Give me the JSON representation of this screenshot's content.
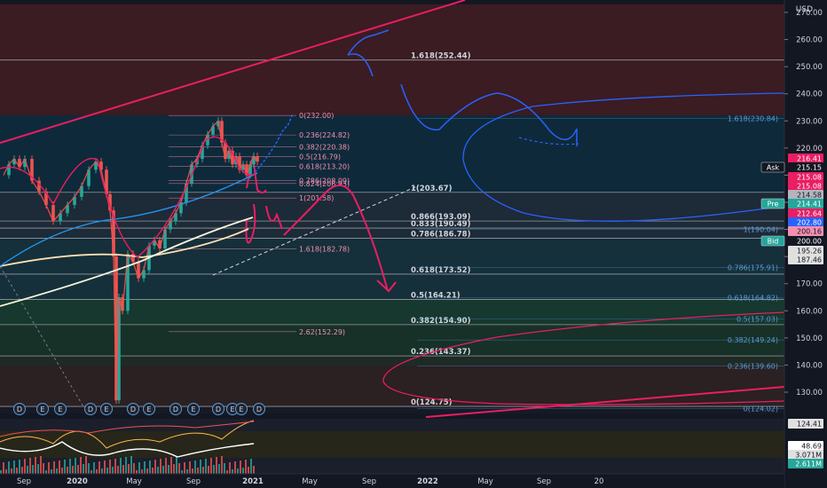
{
  "currency": "USD",
  "chart_data": {
    "type": "line",
    "price_axis": {
      "range": [
        122,
        273
      ],
      "ticks": [
        130,
        140,
        150,
        160,
        170,
        180,
        190,
        200,
        210,
        220,
        230,
        240,
        250,
        260,
        270
      ]
    },
    "time_axis": [
      "Sep",
      "2020",
      "May",
      "Sep",
      "2021",
      "May",
      "Sep",
      "2022",
      "May",
      "Sep",
      "20"
    ],
    "price_series": [
      {
        "t": 0,
        "p": 210
      },
      {
        "t": 6,
        "p": 214
      },
      {
        "t": 12,
        "p": 216
      },
      {
        "t": 18,
        "p": 213
      },
      {
        "t": 24,
        "p": 216
      },
      {
        "t": 32,
        "p": 208
      },
      {
        "t": 40,
        "p": 204
      },
      {
        "t": 48,
        "p": 199
      },
      {
        "t": 56,
        "p": 193
      },
      {
        "t": 64,
        "p": 196
      },
      {
        "t": 72,
        "p": 199
      },
      {
        "t": 80,
        "p": 202
      },
      {
        "t": 88,
        "p": 206
      },
      {
        "t": 96,
        "p": 212
      },
      {
        "t": 104,
        "p": 215
      },
      {
        "t": 110,
        "p": 212
      },
      {
        "t": 116,
        "p": 203
      },
      {
        "t": 120,
        "p": 197
      },
      {
        "t": 124,
        "p": 180
      },
      {
        "t": 127,
        "p": 127
      },
      {
        "t": 130,
        "p": 165
      },
      {
        "t": 134,
        "p": 160
      },
      {
        "t": 140,
        "p": 181
      },
      {
        "t": 146,
        "p": 178
      },
      {
        "t": 152,
        "p": 172
      },
      {
        "t": 158,
        "p": 175
      },
      {
        "t": 164,
        "p": 184
      },
      {
        "t": 170,
        "p": 186
      },
      {
        "t": 176,
        "p": 183
      },
      {
        "t": 182,
        "p": 190
      },
      {
        "t": 188,
        "p": 193
      },
      {
        "t": 194,
        "p": 196
      },
      {
        "t": 200,
        "p": 200
      },
      {
        "t": 206,
        "p": 207
      },
      {
        "t": 212,
        "p": 214
      },
      {
        "t": 218,
        "p": 216
      },
      {
        "t": 224,
        "p": 221
      },
      {
        "t": 230,
        "p": 225
      },
      {
        "t": 236,
        "p": 228
      },
      {
        "t": 242,
        "p": 230
      },
      {
        "t": 246,
        "p": 222
      },
      {
        "t": 250,
        "p": 216
      },
      {
        "t": 254,
        "p": 219
      },
      {
        "t": 258,
        "p": 214
      },
      {
        "t": 262,
        "p": 217
      },
      {
        "t": 266,
        "p": 212
      },
      {
        "t": 270,
        "p": 214
      },
      {
        "t": 274,
        "p": 210
      },
      {
        "t": 278,
        "p": 214
      },
      {
        "t": 282,
        "p": 217
      },
      {
        "t": 286,
        "p": 215
      }
    ],
    "horizontal_levels": [
      {
        "label": "1.618(252.44)",
        "price": 252.44,
        "color": "#d1d4dc"
      },
      {
        "label": "1(203.67)",
        "price": 203.67,
        "color": "#d1d4dc"
      },
      {
        "label": "0.866(193.09)",
        "price": 193.09,
        "color": "#d1d4dc"
      },
      {
        "label": "0.833(190.49)",
        "price": 190.49,
        "color": "#d1d4dc"
      },
      {
        "label": "0.786(186.78)",
        "price": 186.78,
        "color": "#d1d4dc"
      },
      {
        "label": "0.618(173.52)",
        "price": 173.52,
        "color": "#d1d4dc"
      },
      {
        "label": "0.5(164.21)",
        "price": 164.21,
        "color": "#d1d4dc"
      },
      {
        "label": "0.382(154.90)",
        "price": 154.9,
        "color": "#d1d4dc"
      },
      {
        "label": "0.236(143.37)",
        "price": 143.37,
        "color": "#d1d4dc"
      },
      {
        "label": "0(124.75)",
        "price": 124.75,
        "color": "#d1d4dc"
      }
    ],
    "inner_fib_levels": [
      {
        "label": "0(232.00)",
        "price": 232.0
      },
      {
        "label": "0.236(224.82)",
        "price": 224.82
      },
      {
        "label": "0.382(220.38)",
        "price": 220.38
      },
      {
        "label": "0.5(216.79)",
        "price": 216.79
      },
      {
        "label": "0.618(213.20)",
        "price": 213.2
      },
      {
        "label": "0.786(208.09)",
        "price": 208.09
      },
      {
        "label": "0.824(206.93)",
        "price": 206.93
      },
      {
        "label": "1(201.58)",
        "price": 201.58
      },
      {
        "label": "1.618(182.78)",
        "price": 182.78
      },
      {
        "label": "2.62(152.29)",
        "price": 152.29
      }
    ],
    "right_fib_levels": [
      {
        "label": "1.618(230.84)",
        "price": 230.84
      },
      {
        "label": "1(190.04)",
        "price": 190.04
      },
      {
        "label": "0.786(175.91)",
        "price": 175.91
      },
      {
        "label": "0.618(164.82)",
        "price": 164.82
      },
      {
        "label": "0.5(157.03)",
        "price": 157.03
      },
      {
        "label": "0.382(149.24)",
        "price": 149.24
      },
      {
        "label": "0.236(139.60)",
        "price": 139.6
      },
      {
        "label": "0(124.02)",
        "price": 124.02
      }
    ],
    "price_badges": [
      {
        "label": "216.41",
        "price": 216.41,
        "bg": "#e91e63",
        "fg": "#ffffff"
      },
      {
        "label": "215.15",
        "price": 215.15,
        "bg": "#131722",
        "fg": "#ffffff",
        "tag": "Ask"
      },
      {
        "label": "215.08",
        "price": 215.08,
        "bg": "#e91e63",
        "fg": "#ffffff"
      },
      {
        "label": "215.08",
        "price": 215.08,
        "bg": "#e91e63",
        "fg": "#ffffff"
      },
      {
        "label": "214.58",
        "price": 214.58,
        "bg": "#b2b5be",
        "fg": "#131722"
      },
      {
        "label": "214.41",
        "price": 214.41,
        "bg": "#26a69a",
        "fg": "#ffffff",
        "tag": "Pre"
      },
      {
        "label": "212.64",
        "price": 212.64,
        "bg": "#e91e63",
        "fg": "#ffffff"
      },
      {
        "label": "202.80",
        "price": 202.8,
        "bg": "#2962ff",
        "fg": "#ffffff"
      },
      {
        "label": "200.16",
        "price": 200.16,
        "bg": "#f48fb1",
        "fg": "#131722"
      },
      {
        "label": "200.00",
        "price": 200.0,
        "bg": "#131722",
        "fg": "#ffffff",
        "tag": "Bid"
      },
      {
        "label": "195.26",
        "price": 195.26,
        "bg": "#e0e0e0",
        "fg": "#131722"
      },
      {
        "label": "187.46",
        "price": 187.46,
        "bg": "#e0e0e0",
        "fg": "#131722"
      }
    ],
    "earnings_markers": [
      "D",
      "E",
      "E",
      "D",
      "E",
      "D",
      "E",
      "D",
      "E",
      "D",
      "E",
      "E",
      "D",
      "E",
      "E"
    ],
    "indicator_badges": [
      {
        "label": "124.41",
        "bg": "#e0e0e0",
        "fg": "#131722"
      },
      {
        "label": "48.69",
        "bg": "#ffffff",
        "fg": "#131722"
      },
      {
        "label": "3.071M",
        "bg": "#e0e0e0",
        "fg": "#131722"
      },
      {
        "label": "2.611M",
        "bg": "#26a69a",
        "fg": "#ffffff"
      }
    ]
  }
}
